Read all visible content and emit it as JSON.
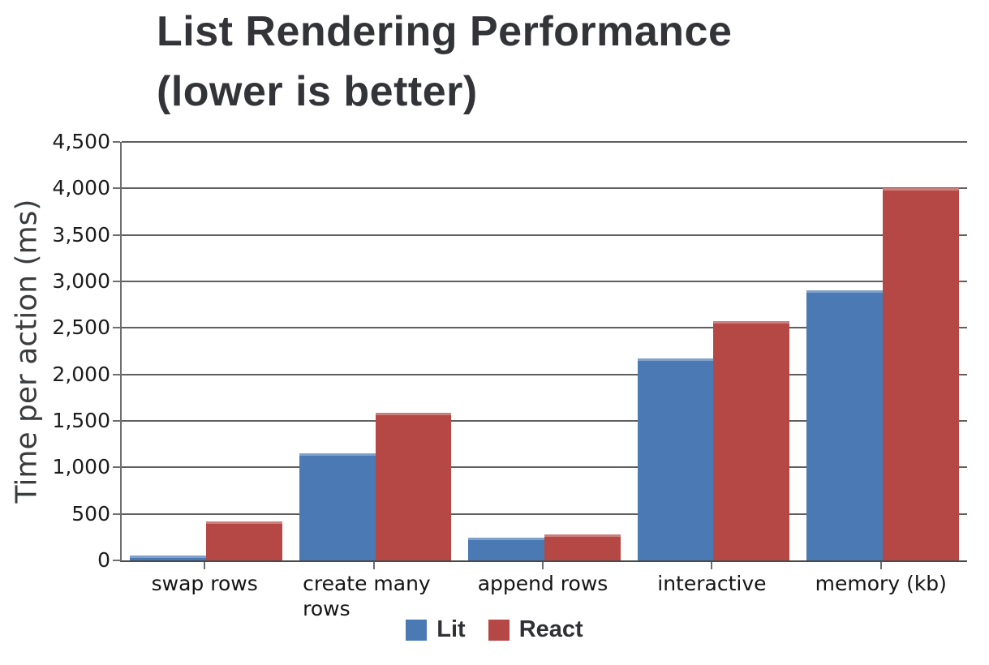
{
  "chart_data": {
    "type": "bar",
    "title": "List Rendering Performance (lower is better)",
    "title_lines": [
      "List Rendering Performance",
      "(lower is better)"
    ],
    "ylabel": "Time per action (ms)",
    "xlabel": "",
    "categories": [
      "swap rows",
      "create many rows",
      "append rows",
      "interactive",
      "memory (kb)"
    ],
    "series": [
      {
        "name": "Lit",
        "color": "#4a79b4",
        "values": [
          50,
          1150,
          240,
          2170,
          2900
        ]
      },
      {
        "name": "React",
        "color": "#b54845",
        "values": [
          415,
          1590,
          280,
          2570,
          4000
        ]
      }
    ],
    "ylim": [
      0,
      4500
    ],
    "ytick_step": 500,
    "ytick_labels": [
      "0",
      "500",
      "1,000",
      "1,500",
      "2,000",
      "2,500",
      "3,000",
      "3,500",
      "4,000",
      "4,500"
    ],
    "grid": true,
    "legend_position": "bottom"
  },
  "colors": {
    "lit_bar": "#4a79b4",
    "react_bar": "#b54845",
    "title_text": "#333438",
    "axis_text": "#1c1c1c",
    "gridline": "#5f5f5f",
    "axis_line": "#6e6e6e",
    "background": "#ffffff"
  }
}
